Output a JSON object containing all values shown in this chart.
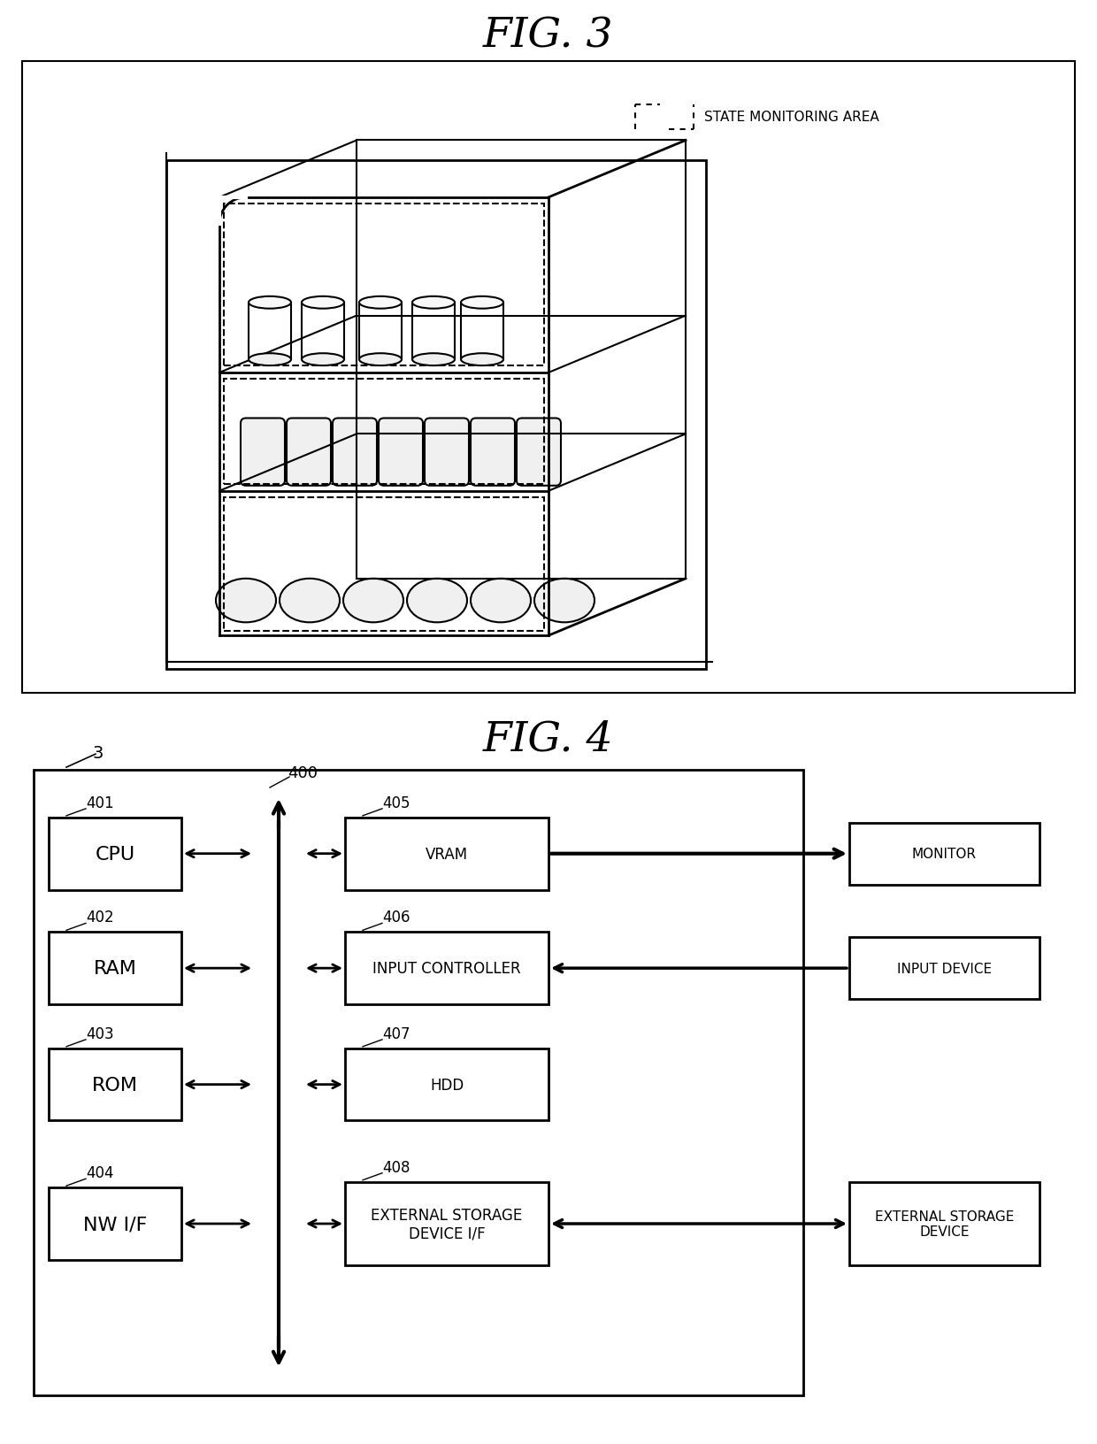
{
  "fig3_title": "FIG. 3",
  "fig4_title": "FIG. 4",
  "bg": "#ffffff",
  "lc": "#000000",
  "fig3_legend": "STATE MONITORING AREA",
  "fig4_sys_label": "3",
  "bus_label": "400",
  "left_boxes": [
    {
      "label": "CPU",
      "num": "401"
    },
    {
      "label": "RAM",
      "num": "402"
    },
    {
      "label": "ROM",
      "num": "403"
    },
    {
      "label": "NW I/F",
      "num": "404"
    }
  ],
  "right_boxes": [
    {
      "label": "VRAM",
      "num": "405",
      "ext": "MONITOR",
      "ext_arrow": "right"
    },
    {
      "label": "INPUT CONTROLLER",
      "num": "406",
      "ext": "INPUT DEVICE",
      "ext_arrow": "left"
    },
    {
      "label": "HDD",
      "num": "407",
      "ext": null,
      "ext_arrow": null
    },
    {
      "label": "EXTERNAL STORAGE\nDEVICE I/F",
      "num": "408",
      "ext": "EXTERNAL STORAGE\nDEVICE",
      "ext_arrow": "both"
    }
  ]
}
